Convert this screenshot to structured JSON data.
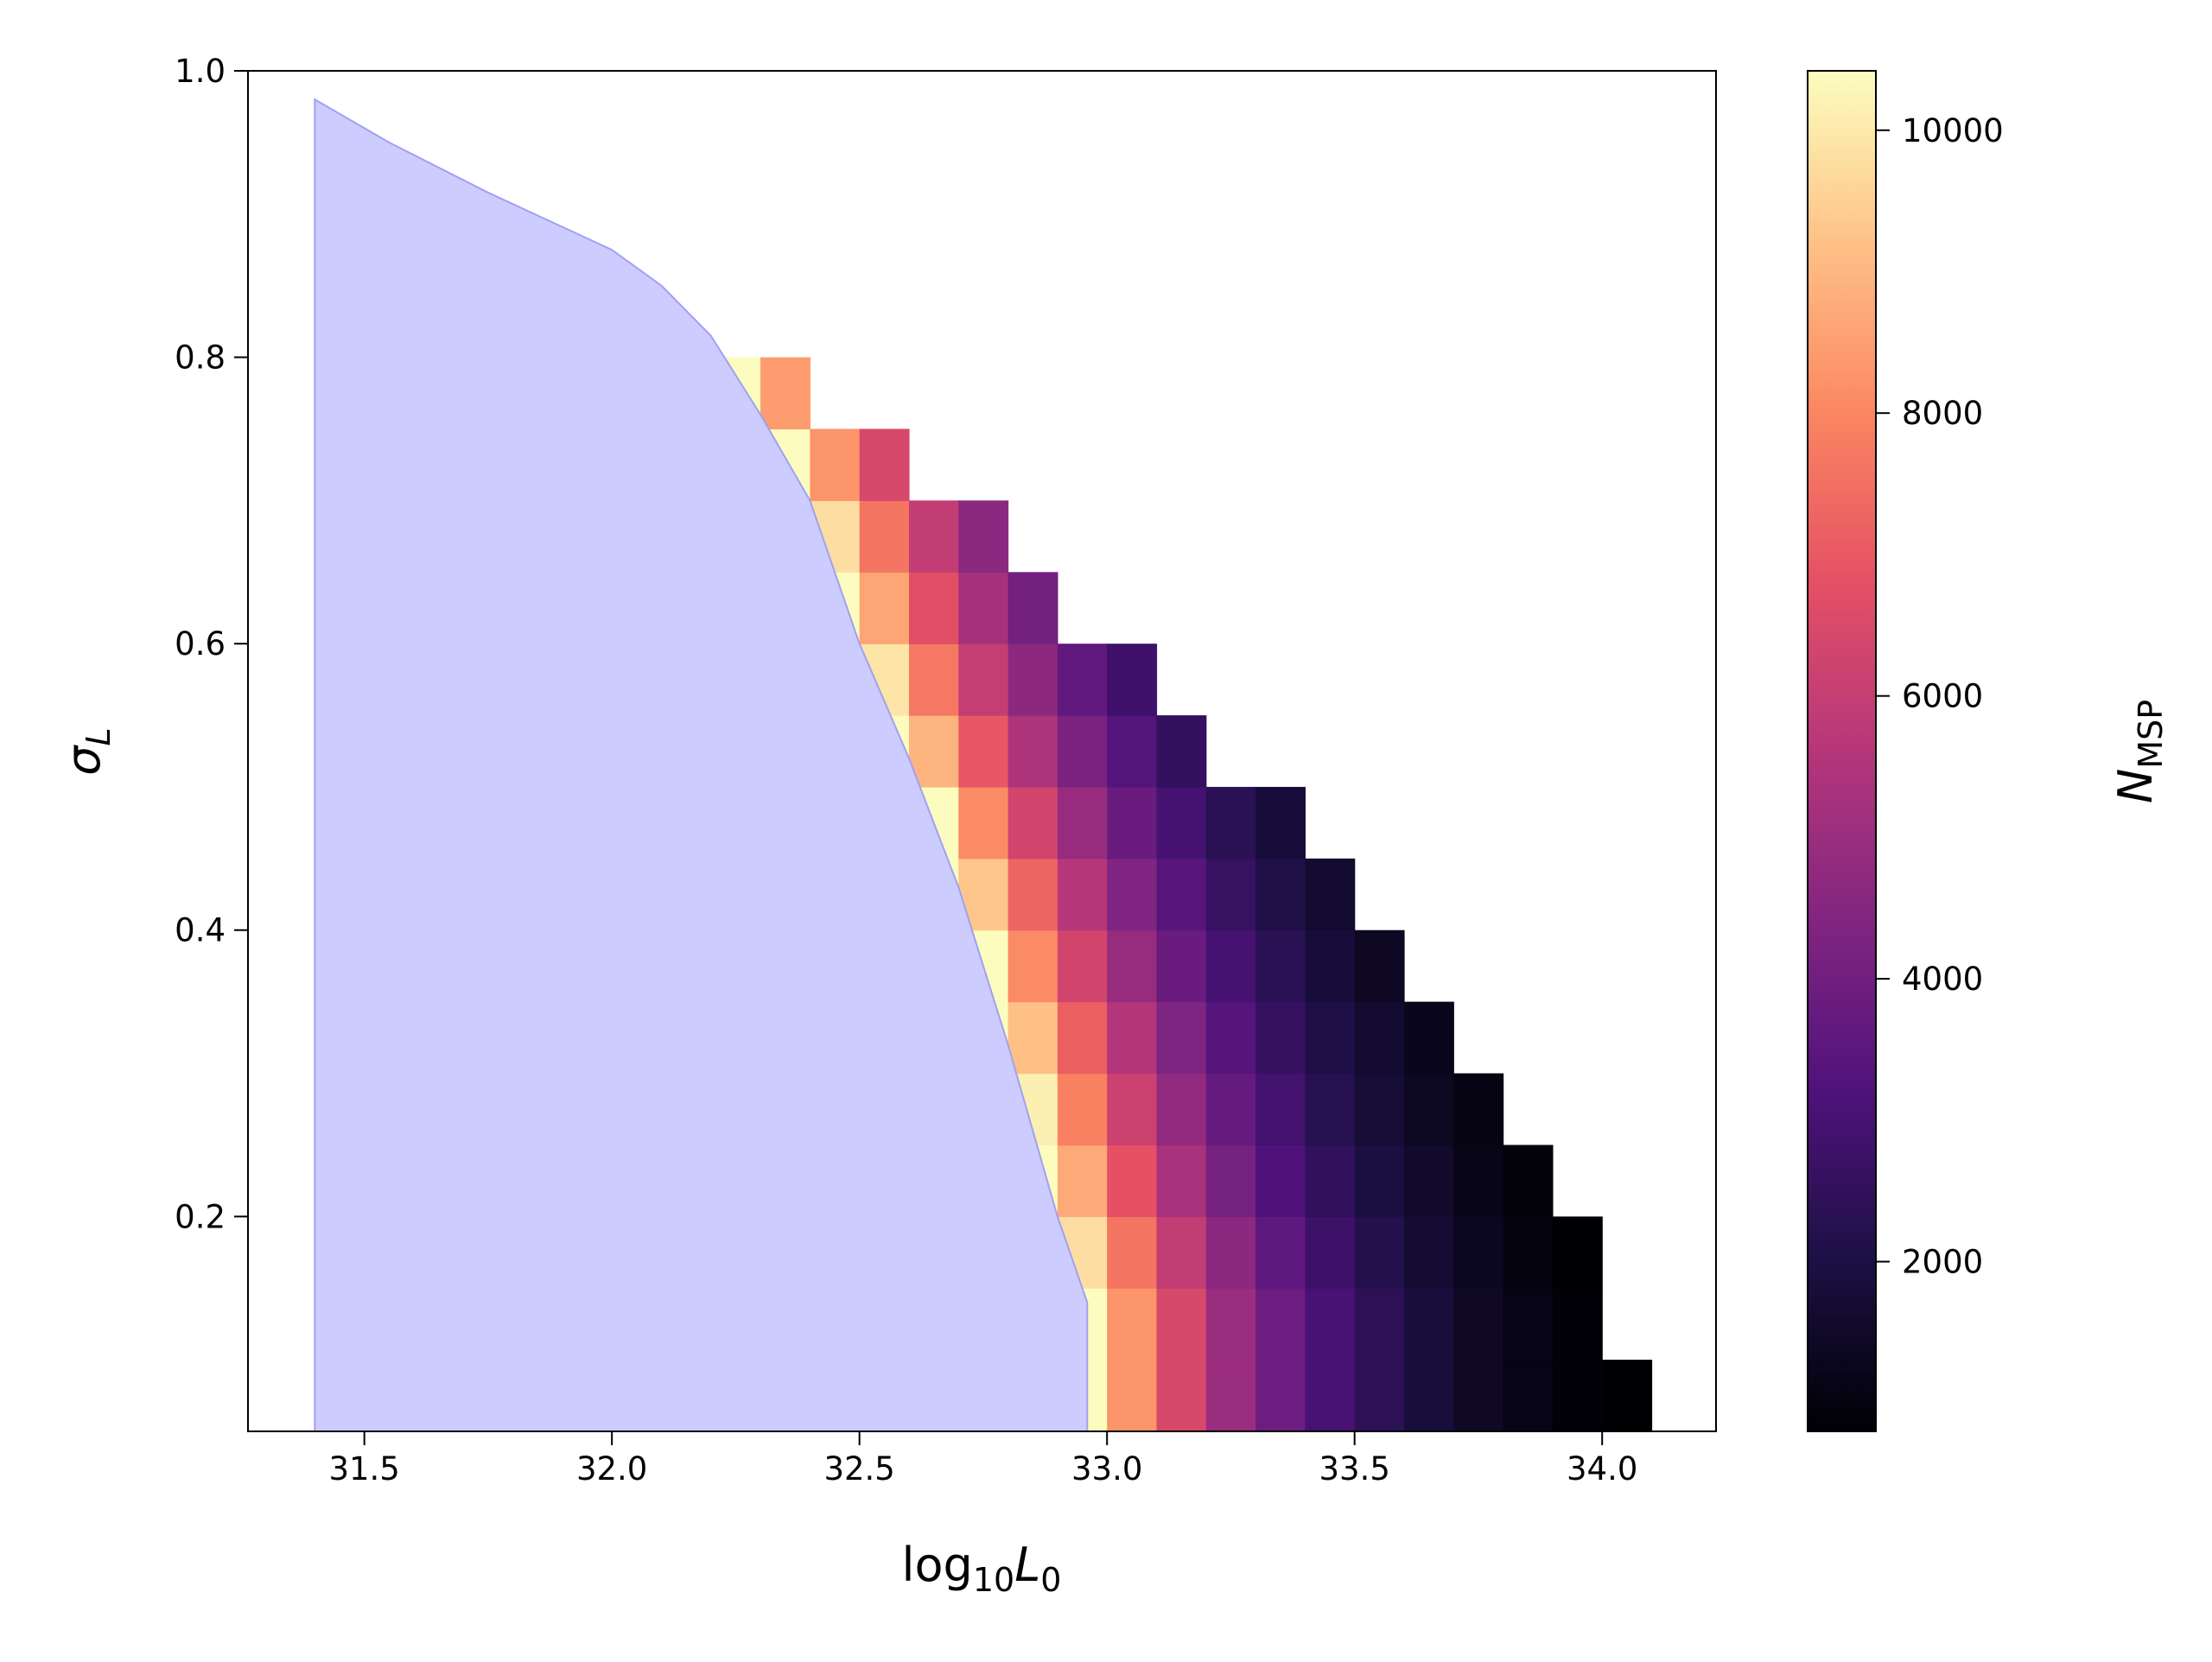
{
  "chart_data": {
    "type": "heatmap",
    "xlabel": [
      "log",
      "10",
      "L",
      "0"
    ],
    "ylabel": [
      "σ",
      "L"
    ],
    "colorbar_label": [
      "N",
      "MSP"
    ],
    "xlim": [
      31.265,
      34.23
    ],
    "ylim": [
      0.05,
      1.0
    ],
    "xticks": [
      31.5,
      {
        "value": 32,
        "label": "32.0"
      },
      32.5,
      {
        "value": 33,
        "label": "33.0"
      },
      33.5,
      {
        "value": 34,
        "label": "34.0"
      }
    ],
    "yticks": [
      0.2,
      0.4,
      0.6,
      0.8,
      {
        "value": 1,
        "label": "1.0"
      }
    ],
    "colormap": "magma",
    "clim": [
      800,
      10420
    ],
    "colorbar_ticks": [
      2000,
      4000,
      6000,
      8000,
      10000
    ],
    "x": [
      32.25,
      32.35,
      32.45,
      32.55,
      32.65,
      32.75,
      32.85,
      32.95,
      33.05,
      33.15,
      33.25,
      33.35,
      33.45,
      33.55,
      33.65,
      33.75,
      33.85,
      33.95,
      34.05,
      34.15
    ],
    "y": [
      0.075,
      0.125,
      0.175,
      0.225,
      0.275,
      0.325,
      0.375,
      0.425,
      0.475,
      0.525,
      0.575,
      0.625,
      0.675,
      0.725,
      0.775
    ],
    "z": [
      [
        null,
        null,
        null,
        null,
        null,
        null,
        null,
        10400,
        8300,
        6470,
        5000,
        3930,
        3050,
        2380,
        1850,
        1440,
        1120,
        870,
        800,
        null
      ],
      [
        null,
        null,
        null,
        null,
        null,
        null,
        null,
        10400,
        8300,
        6470,
        5000,
        3930,
        3050,
        2380,
        1850,
        1440,
        1120,
        870,
        null,
        null
      ],
      [
        null,
        null,
        null,
        null,
        null,
        null,
        10400,
        9770,
        7630,
        5920,
        4630,
        3600,
        2800,
        2180,
        1700,
        1330,
        1030,
        800,
        null,
        null
      ],
      [
        null,
        null,
        null,
        null,
        null,
        null,
        10400,
        8730,
        6800,
        5300,
        4130,
        3210,
        2500,
        1950,
        1520,
        1180,
        920,
        null,
        null,
        null
      ],
      [
        null,
        null,
        null,
        null,
        null,
        10400,
        10140,
        7890,
        6150,
        4790,
        3730,
        2910,
        2270,
        1760,
        1370,
        1070,
        null,
        null,
        null,
        null
      ],
      [
        null,
        null,
        null,
        null,
        null,
        10400,
        9170,
        7150,
        5560,
        4340,
        3380,
        2630,
        2050,
        1600,
        1240,
        null,
        null,
        null,
        null,
        null
      ],
      [
        null,
        null,
        null,
        null,
        null,
        10400,
        8100,
        6310,
        4910,
        3830,
        2980,
        2320,
        1810,
        1410,
        null,
        null,
        null,
        null,
        null,
        null
      ],
      [
        null,
        null,
        null,
        null,
        10400,
        9290,
        7240,
        5640,
        4390,
        3420,
        2660,
        2070,
        1610,
        null,
        null,
        null,
        null,
        null,
        null,
        null
      ],
      [
        null,
        null,
        null,
        null,
        10400,
        8100,
        6310,
        4910,
        3830,
        2980,
        2320,
        1810,
        null,
        null,
        null,
        null,
        null,
        null,
        null,
        null
      ],
      [
        null,
        null,
        null,
        10400,
        8940,
        6970,
        5430,
        4230,
        3300,
        2570,
        null,
        null,
        null,
        null,
        null,
        null,
        null,
        null,
        null,
        null
      ],
      [
        null,
        null,
        10400,
        9910,
        7700,
        6000,
        4670,
        3640,
        2840,
        null,
        null,
        null,
        null,
        null,
        null,
        null,
        null,
        null,
        null,
        null
      ],
      [
        null,
        null,
        10400,
        8630,
        6700,
        5240,
        4080,
        null,
        null,
        null,
        null,
        null,
        null,
        null,
        null,
        null,
        null,
        null,
        null,
        null
      ],
      [
        null,
        10400,
        9770,
        7630,
        5920,
        4630,
        null,
        null,
        null,
        null,
        null,
        null,
        null,
        null,
        null,
        null,
        null,
        null,
        null,
        null
      ],
      [
        null,
        10400,
        8300,
        6470,
        null,
        null,
        null,
        null,
        null,
        null,
        null,
        null,
        null,
        null,
        null,
        null,
        null,
        null,
        null,
        null
      ],
      [
        10400,
        8450,
        null,
        null,
        null,
        null,
        null,
        null,
        null,
        null,
        null,
        null,
        null,
        null,
        null,
        null,
        null,
        null,
        null,
        null
      ]
    ],
    "fill": {
      "color": "#ccccff",
      "edgecolor": "#a0a0f5",
      "x": [
        31.4,
        31.4,
        31.55,
        31.75,
        32.0,
        32.1,
        32.2,
        32.3,
        32.4,
        32.5,
        32.6,
        32.7,
        32.8,
        32.9,
        32.96,
        32.96
      ],
      "y": [
        0.05,
        0.98,
        0.95,
        0.915,
        0.875,
        0.85,
        0.815,
        0.76,
        0.7,
        0.6,
        0.52,
        0.43,
        0.32,
        0.2,
        0.14,
        0.05
      ]
    }
  }
}
